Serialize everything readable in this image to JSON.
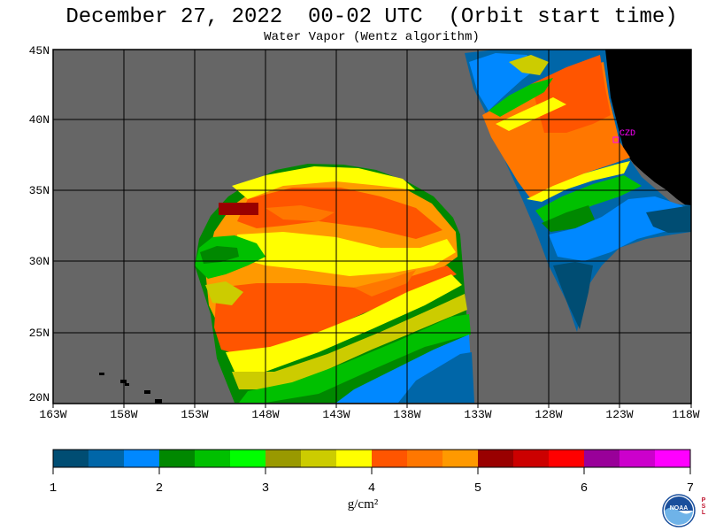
{
  "header": {
    "title": "December 27, 2022  00-02 UTC  (Orbit start time)",
    "subtitle": "Water Vapor (Wentz algorithm)"
  },
  "map": {
    "lat_labels": [
      "45N",
      "40N",
      "35N",
      "30N",
      "25N",
      "20N"
    ],
    "lon_labels": [
      "163W",
      "158W",
      "153W",
      "148W",
      "143W",
      "138W",
      "133W",
      "128W",
      "123W",
      "118W"
    ],
    "station_label": "CZD",
    "background_color": "#666666",
    "land_color": "#000000"
  },
  "colorbar": {
    "tick_labels": [
      "1",
      "2",
      "3",
      "4",
      "5",
      "6",
      "7"
    ],
    "units": "g/cm²",
    "colors": [
      "#004d73",
      "#0066a8",
      "#0088ff",
      "#008800",
      "#00c000",
      "#00ff00",
      "#999900",
      "#cccc00",
      "#ffff00",
      "#ff5500",
      "#ff7700",
      "#ff9900",
      "#990000",
      "#cc0000",
      "#ff0000",
      "#990099",
      "#cc00cc",
      "#ff00ff"
    ]
  },
  "logo": {
    "text": "NOAA",
    "side_text": "PSL"
  }
}
